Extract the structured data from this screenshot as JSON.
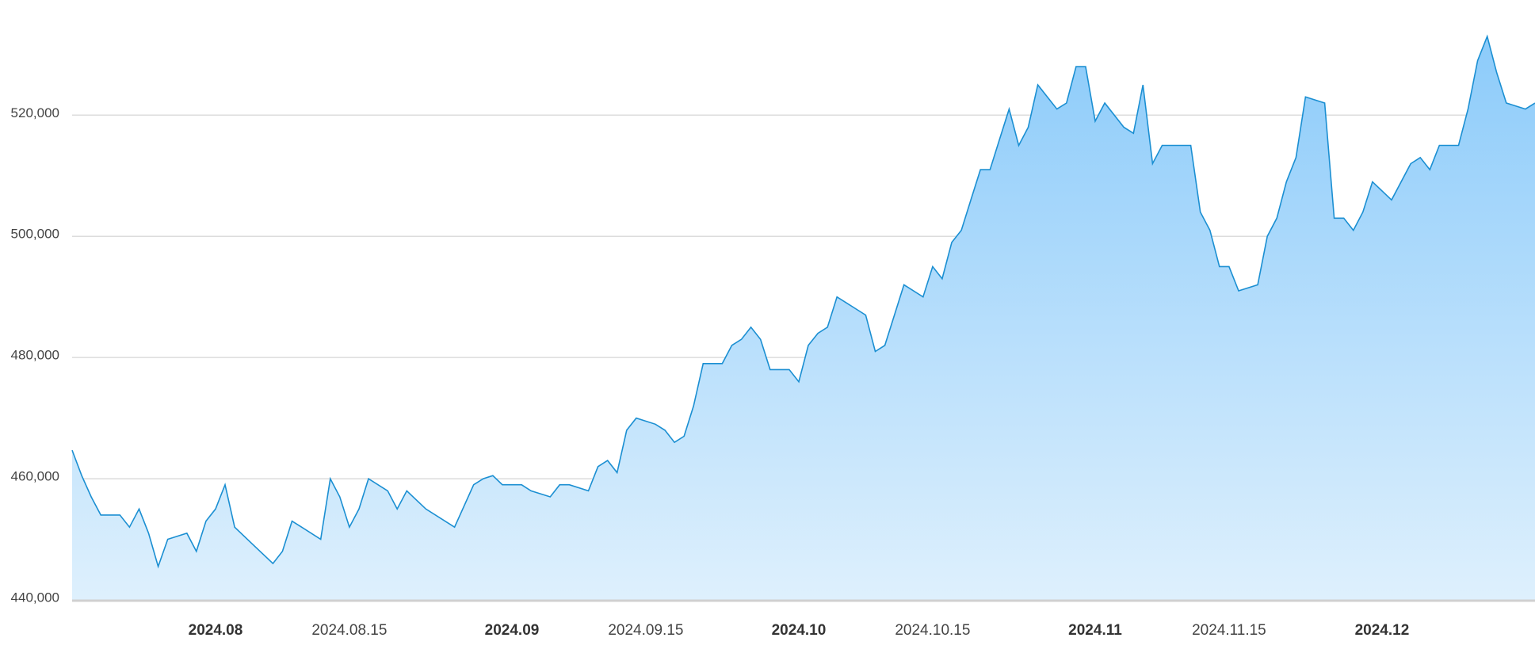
{
  "chart_data": {
    "type": "area",
    "x": [
      "2024.07.17",
      "2024.07.18",
      "2024.07.19",
      "2024.07.20",
      "2024.07.22",
      "2024.07.23",
      "2024.07.24",
      "2024.07.25",
      "2024.07.26",
      "2024.07.27",
      "2024.07.29",
      "2024.07.30",
      "2024.07.31",
      "2024.08.01",
      "2024.08.02",
      "2024.08.03",
      "2024.08.05",
      "2024.08.07",
      "2024.08.08",
      "2024.08.09",
      "2024.08.10",
      "2024.08.12",
      "2024.08.13",
      "2024.08.14",
      "2024.08.15",
      "2024.08.16",
      "2024.08.17",
      "2024.08.19",
      "2024.08.20",
      "2024.08.21",
      "2024.08.23",
      "2024.08.26",
      "2024.08.28",
      "2024.08.29",
      "2024.08.30",
      "2024.08.31",
      "2024.09.02",
      "2024.09.03",
      "2024.09.05",
      "2024.09.06",
      "2024.09.07",
      "2024.09.09",
      "2024.09.10",
      "2024.09.11",
      "2024.09.12",
      "2024.09.13",
      "2024.09.14",
      "2024.09.16",
      "2024.09.17",
      "2024.09.18",
      "2024.09.19",
      "2024.09.20",
      "2024.09.21",
      "2024.09.23",
      "2024.09.24",
      "2024.09.25",
      "2024.09.26",
      "2024.09.27",
      "2024.09.28",
      "2024.09.30",
      "2024.10.01",
      "2024.10.02",
      "2024.10.03",
      "2024.10.04",
      "2024.10.05",
      "2024.10.07",
      "2024.10.08",
      "2024.10.09",
      "2024.10.10",
      "2024.10.12",
      "2024.10.14",
      "2024.10.15",
      "2024.10.16",
      "2024.10.17",
      "2024.10.18",
      "2024.10.19",
      "2024.10.20",
      "2024.10.21",
      "2024.10.22",
      "2024.10.23",
      "2024.10.24",
      "2024.10.25",
      "2024.10.26",
      "2024.10.28",
      "2024.10.29",
      "2024.10.30",
      "2024.10.31",
      "2024.11.01",
      "2024.11.02",
      "2024.11.04",
      "2024.11.05",
      "2024.11.06",
      "2024.11.07",
      "2024.11.08",
      "2024.11.11",
      "2024.11.12",
      "2024.11.13",
      "2024.11.14",
      "2024.11.15",
      "2024.11.16",
      "2024.11.18",
      "2024.11.19",
      "2024.11.20",
      "2024.11.21",
      "2024.11.22",
      "2024.11.23",
      "2024.11.25",
      "2024.11.26",
      "2024.11.27",
      "2024.11.28",
      "2024.11.29",
      "2024.11.30",
      "2024.12.02",
      "2024.12.04",
      "2024.12.05",
      "2024.12.06",
      "2024.12.07",
      "2024.12.09",
      "2024.12.10",
      "2024.12.11",
      "2024.12.12",
      "2024.12.13",
      "2024.12.14",
      "2024.12.16",
      "2024.12.17"
    ],
    "values": [
      464700,
      460500,
      457000,
      454000,
      454000,
      452000,
      455000,
      451000,
      445500,
      450000,
      451000,
      448000,
      453000,
      455000,
      459000,
      452000,
      449000,
      446000,
      448000,
      453000,
      452000,
      450000,
      460000,
      457000,
      452000,
      455000,
      460000,
      458000,
      455000,
      458000,
      455000,
      452000,
      459000,
      460000,
      460500,
      459000,
      459000,
      458000,
      457000,
      459000,
      459000,
      458000,
      462000,
      463000,
      461000,
      468000,
      470000,
      469000,
      468000,
      466000,
      467000,
      472000,
      479000,
      479000,
      482000,
      483000,
      485000,
      483000,
      478000,
      478000,
      476000,
      482000,
      484000,
      485000,
      490000,
      488000,
      487000,
      481000,
      482000,
      492000,
      490000,
      495000,
      493000,
      499000,
      501000,
      506000,
      511000,
      511000,
      516000,
      521000,
      515000,
      518000,
      525000,
      521000,
      522000,
      528000,
      528000,
      519000,
      522000,
      518000,
      517000,
      525000,
      512000,
      515000,
      515000,
      504000,
      501000,
      495000,
      495000,
      491000,
      492000,
      500000,
      503000,
      509000,
      513000,
      523000,
      522000,
      503000,
      503000,
      501000,
      504000,
      509000,
      506000,
      512000,
      513000,
      511000,
      515000,
      515000,
      521000,
      529000,
      533000,
      527000,
      522000,
      521000,
      522000
    ],
    "color": "#1b8fd2",
    "xlim": [
      "2024.07.17",
      "2024.12.17"
    ],
    "xticks": [
      {
        "value": "2024.08.01",
        "label": "2024.08"
      },
      "2024.08.15",
      {
        "value": "2024.09.01",
        "label": "2024.09"
      },
      "2024.09.15",
      {
        "value": "2024.10.01",
        "label": "2024.10"
      },
      "2024.10.15",
      {
        "value": "2024.11.01",
        "label": "2024.11"
      },
      "2024.11.15",
      {
        "value": "2024.12.01",
        "label": "2024.12"
      }
    ],
    "ylim": [
      440000,
      539000
    ],
    "yticks": [
      {
        "value": 440000,
        "label": "440,000"
      },
      {
        "value": 460000,
        "label": "460,000"
      },
      {
        "value": 480000,
        "label": "480,000"
      },
      {
        "value": 500000,
        "label": "500,000"
      },
      {
        "value": 520000,
        "label": "520,000"
      }
    ],
    "grid": true
  }
}
